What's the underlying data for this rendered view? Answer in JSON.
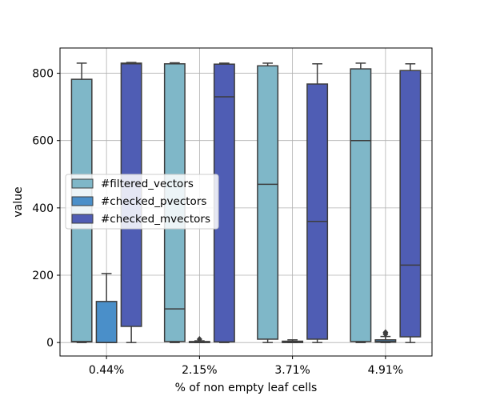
{
  "chart_data": {
    "type": "box",
    "xlabel": "% of non empty leaf cells",
    "ylabel": "value",
    "categories": [
      "0.44%",
      "2.15%",
      "3.71%",
      "4.91%"
    ],
    "ylim": [
      -40,
      875
    ],
    "yticks": [
      0,
      200,
      400,
      600,
      800
    ],
    "grid": true,
    "legend_position": "center-left",
    "series": [
      {
        "name": "#filtered_vectors",
        "color": "#7fb7c8",
        "boxes": [
          {
            "whislo": 0,
            "q1": 2,
            "med": 3,
            "q3": 782,
            "whishi": 830,
            "fliers": []
          },
          {
            "whislo": 0,
            "q1": 3,
            "med": 100,
            "q3": 828,
            "whishi": 831,
            "fliers": []
          },
          {
            "whislo": 0,
            "q1": 10,
            "med": 470,
            "q3": 822,
            "whishi": 830,
            "fliers": []
          },
          {
            "whislo": 0,
            "q1": 3,
            "med": 600,
            "q3": 813,
            "whishi": 830,
            "fliers": []
          }
        ]
      },
      {
        "name": "#checked_pvectors",
        "color": "#4a8fc9",
        "boxes": [
          {
            "whislo": 0,
            "q1": 0,
            "med": 0,
            "q3": 122,
            "whishi": 205,
            "fliers": []
          },
          {
            "whislo": 0,
            "q1": 0,
            "med": 1,
            "q3": 3,
            "whishi": 5,
            "fliers": [
              10
            ]
          },
          {
            "whislo": 0,
            "q1": 0,
            "med": 1,
            "q3": 4,
            "whishi": 8,
            "fliers": []
          },
          {
            "whislo": 0,
            "q1": 1,
            "med": 3,
            "q3": 8,
            "whishi": 18,
            "fliers": [
              25,
              30
            ]
          }
        ]
      },
      {
        "name": "#checked_mvectors",
        "color": "#4f5db4",
        "boxes": [
          {
            "whislo": 0,
            "q1": 48,
            "med": 828,
            "q3": 830,
            "whishi": 832,
            "fliers": []
          },
          {
            "whislo": 0,
            "q1": 2,
            "med": 730,
            "q3": 827,
            "whishi": 830,
            "fliers": []
          },
          {
            "whislo": 0,
            "q1": 10,
            "med": 360,
            "q3": 768,
            "whishi": 828,
            "fliers": []
          },
          {
            "whislo": 0,
            "q1": 17,
            "med": 230,
            "q3": 808,
            "whishi": 828,
            "fliers": []
          }
        ]
      }
    ]
  }
}
